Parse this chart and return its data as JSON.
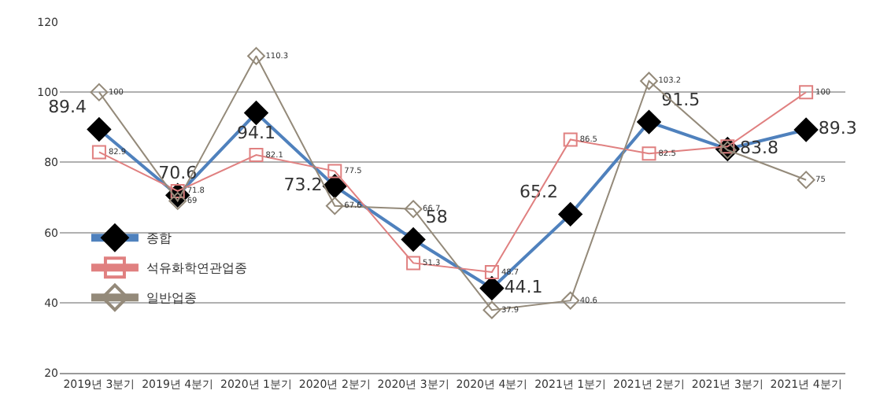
{
  "chart_data": {
    "type": "line",
    "categories": [
      "2019년 3분기",
      "2019년 4분기",
      "2020년 1분기",
      "2020년 2분기",
      "2020년 3분기",
      "2020년 4분기",
      "2021년 1분기",
      "2021년 2분기",
      "2021년 3분기",
      "2021년 4분기"
    ],
    "series": [
      {
        "name": "종합",
        "color": "#4f81bd",
        "colors": [
          "#000000",
          "#000000",
          "#000000",
          "#000000",
          "#000000",
          "#000000",
          "#000000",
          "#000000",
          "#000000",
          "#000000"
        ],
        "marker": "diamond",
        "values": [
          89.4,
          70.6,
          94.1,
          73.2,
          58,
          44.1,
          65.2,
          91.5,
          83.8,
          89.3
        ],
        "value_labels": [
          "89.4",
          "70.6",
          "94.1",
          "73.2",
          "58",
          "44.1",
          "65.2",
          "91.5",
          "83.8",
          "89.3"
        ]
      },
      {
        "name": "석유화학연관업종",
        "color": "#e08080",
        "marker": "square",
        "values": [
          82.9,
          71.8,
          82.1,
          77.5,
          51.3,
          48.7,
          86.5,
          82.5,
          84.5,
          100
        ],
        "value_labels": [
          "82.9",
          "71.8",
          "82.1",
          "77.5",
          "51.3",
          "48.7",
          "86.5",
          "82.5",
          null,
          "100"
        ]
      },
      {
        "name": "일반업종",
        "color": "#948a7a",
        "marker": "diamond",
        "values": [
          100,
          69,
          110.3,
          67.6,
          66.7,
          37.9,
          40.6,
          103.2,
          83.5,
          75
        ],
        "value_labels": [
          "100",
          "69",
          "110.3",
          "67.6",
          "66.7",
          "37.9",
          "40.6",
          "103.2",
          null,
          "75"
        ]
      }
    ],
    "ylim": [
      20,
      120
    ],
    "yticks": [
      20,
      40,
      60,
      80,
      100,
      120
    ],
    "grid": "y",
    "legend": "left"
  }
}
